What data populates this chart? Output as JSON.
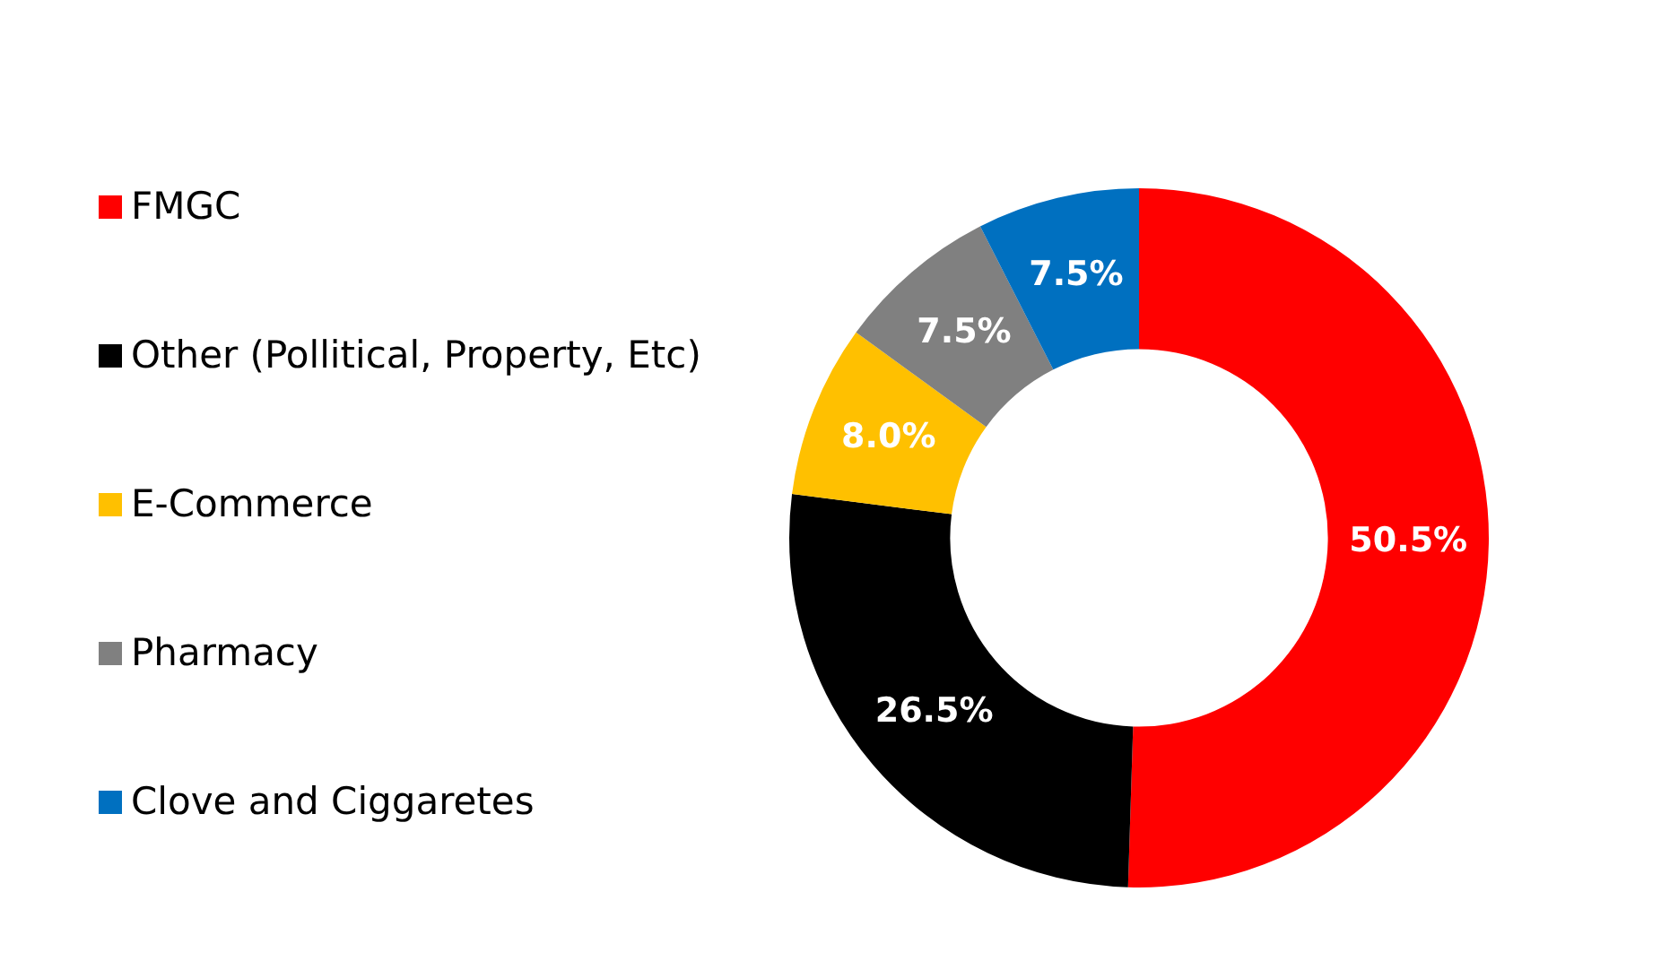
{
  "chart_data": {
    "type": "donut",
    "categories": [
      "FMGC",
      "Other (Pollitical, Property, Etc)",
      "E-Commerce",
      "Pharmacy",
      "Clove and Ciggaretes"
    ],
    "values": [
      50.5,
      26.5,
      8.0,
      7.5,
      7.5
    ],
    "value_labels": [
      "50.5%",
      "26.5%",
      "8.0%",
      "7.5%",
      "7.5%"
    ],
    "colors": [
      "#ff0000",
      "#000000",
      "#ffc000",
      "#808080",
      "#0070c0"
    ],
    "legend": "left"
  }
}
